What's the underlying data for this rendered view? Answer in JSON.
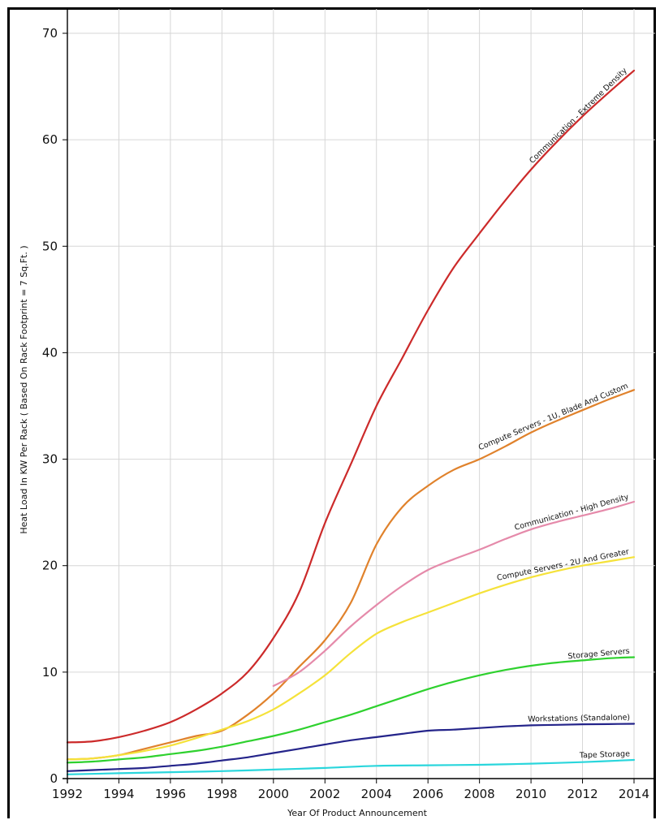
{
  "chart_data": {
    "type": "line",
    "title": "",
    "xlabel": "Year Of Product Announcement",
    "ylabel": "Heat Load In KW Per Rack ( Based On Rack Footprint = 7 Sq.Ft. )",
    "xlim": [
      1992,
      2014
    ],
    "ylim": [
      0,
      70
    ],
    "x_ticks": [
      1992,
      1994,
      1996,
      1998,
      2000,
      2002,
      2004,
      2006,
      2008,
      2010,
      2012,
      2014
    ],
    "y_ticks": [
      0,
      10,
      20,
      30,
      40,
      50,
      60,
      70
    ],
    "grid": true,
    "legend": "none (labels placed along lines)",
    "series": [
      {
        "name": "Communication - Extreme Density",
        "color": "#cc2a2a",
        "x": [
          1992,
          1993,
          1994,
          1995,
          1996,
          1997,
          1998,
          1999,
          2000,
          2001,
          2002,
          2003,
          2004,
          2005,
          2006,
          2007,
          2008,
          2009,
          2010,
          2011,
          2012,
          2013,
          2014
        ],
        "y": [
          3.4,
          3.5,
          3.9,
          4.5,
          5.3,
          6.5,
          8,
          10,
          13.2,
          17.5,
          24,
          29.5,
          35,
          39.5,
          44,
          48,
          51.2,
          54.3,
          57.2,
          59.8,
          62.2,
          64.4,
          66.5
        ]
      },
      {
        "name": "Compute Servers - 1U, Blade And Custom",
        "color": "#e0822c",
        "x": [
          1992,
          1993,
          1994,
          1995,
          1996,
          1997,
          1998,
          1999,
          2000,
          2001,
          2002,
          2003,
          2004,
          2005,
          2006,
          2007,
          2008,
          2009,
          2010,
          2011,
          2012,
          2013,
          2014
        ],
        "y": [
          1.8,
          1.9,
          2.2,
          2.8,
          3.4,
          4.0,
          4.5,
          6.0,
          8,
          10.5,
          13,
          16.5,
          22,
          25.5,
          27.5,
          29,
          30,
          31.2,
          32.5,
          33.6,
          34.6,
          35.6,
          36.5
        ]
      },
      {
        "name": "Communication - High Density",
        "color": "#e58aaa",
        "x": [
          2000,
          2001,
          2002,
          2003,
          2004,
          2005,
          2006,
          2007,
          2008,
          2009,
          2010,
          2011,
          2012,
          2013,
          2014
        ],
        "y": [
          8.7,
          10,
          12,
          14.3,
          16.3,
          18.1,
          19.6,
          20.6,
          21.5,
          22.5,
          23.4,
          24.1,
          24.7,
          25.3,
          26
        ]
      },
      {
        "name": "Compute Servers - 2U And Greater",
        "color": "#f5e23a",
        "x": [
          1992,
          1993,
          1994,
          1995,
          1996,
          1997,
          1998,
          1999,
          2000,
          2001,
          2002,
          2003,
          2004,
          2005,
          2006,
          2007,
          2008,
          2009,
          2010,
          2011,
          2012,
          2013,
          2014
        ],
        "y": [
          1.8,
          1.9,
          2.2,
          2.6,
          3.1,
          3.8,
          4.6,
          5.4,
          6.5,
          8,
          9.7,
          11.8,
          13.6,
          14.7,
          15.6,
          16.5,
          17.4,
          18.2,
          18.9,
          19.5,
          20,
          20.4,
          20.8
        ]
      },
      {
        "name": "Storage Servers",
        "color": "#2ed12e",
        "x": [
          1992,
          1993,
          1994,
          1995,
          1996,
          1997,
          1998,
          1999,
          2000,
          2001,
          2002,
          2003,
          2004,
          2005,
          2006,
          2007,
          2008,
          2009,
          2010,
          2011,
          2012,
          2013,
          2014
        ],
        "y": [
          1.5,
          1.6,
          1.8,
          2.0,
          2.3,
          2.6,
          3.0,
          3.5,
          4.0,
          4.6,
          5.3,
          6.0,
          6.8,
          7.6,
          8.4,
          9.1,
          9.7,
          10.2,
          10.6,
          10.9,
          11.1,
          11.3,
          11.4
        ]
      },
      {
        "name": "Workstations (Standalone)",
        "color": "#24248a",
        "x": [
          1992,
          1993,
          1994,
          1995,
          1996,
          1997,
          1998,
          1999,
          2000,
          2001,
          2002,
          2003,
          2004,
          2005,
          2006,
          2007,
          2008,
          2009,
          2010,
          2011,
          2012,
          2013,
          2014
        ],
        "y": [
          0.7,
          0.8,
          0.9,
          1.0,
          1.2,
          1.4,
          1.7,
          2.0,
          2.4,
          2.8,
          3.2,
          3.6,
          3.9,
          4.2,
          4.5,
          4.6,
          4.75,
          4.9,
          5.0,
          5.05,
          5.1,
          5.12,
          5.15
        ]
      },
      {
        "name": "Tape Storage",
        "color": "#2ad6dc",
        "x": [
          1992,
          1994,
          1996,
          1998,
          2000,
          2002,
          2004,
          2006,
          2008,
          2010,
          2012,
          2014
        ],
        "y": [
          0.4,
          0.5,
          0.6,
          0.7,
          0.85,
          1.0,
          1.2,
          1.25,
          1.3,
          1.4,
          1.55,
          1.75
        ]
      }
    ]
  }
}
